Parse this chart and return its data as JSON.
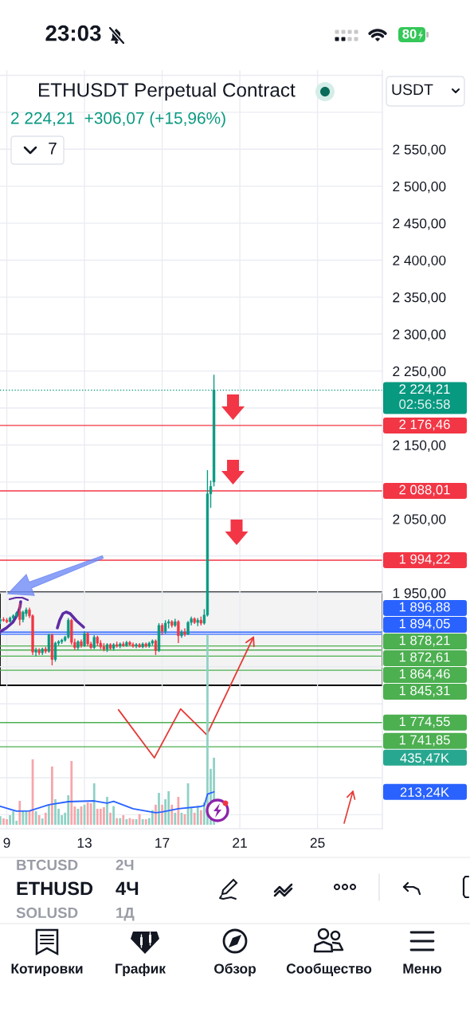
{
  "chart_data": {
    "type": "candlestick",
    "title": "ETHUSDT Perpetual Contract",
    "subtitle": "2 224,21  +306,07 (+15,96%)",
    "x": [
      8.667,
      8.833,
      9,
      9.167,
      9.333,
      9.5,
      9.667,
      9.833,
      10,
      10.167,
      10.333,
      10.5,
      10.667,
      10.833,
      11,
      11.167,
      11.333,
      11.5,
      11.667,
      11.833,
      12,
      12.167,
      12.333,
      12.5,
      12.667,
      12.833,
      13,
      13.167,
      13.333,
      13.5,
      13.667,
      13.833,
      14,
      14.167,
      14.333,
      14.5,
      14.667,
      14.833,
      15,
      15.167,
      15.333,
      15.5,
      15.667,
      15.833,
      16,
      16.167,
      16.333,
      16.5,
      16.667,
      16.833,
      17,
      17.167,
      17.333,
      17.5,
      17.667,
      17.833,
      18,
      18.167,
      18.333,
      18.5,
      18.667,
      18.833,
      19,
      19.167,
      19.333,
      19.5,
      19.667
    ],
    "ohlc": [
      [
        1912,
        1916,
        1908,
        1914
      ],
      [
        1914,
        1917,
        1911,
        1913
      ],
      [
        1913,
        1916,
        1909,
        1911
      ],
      [
        1911,
        1918,
        1910,
        1916
      ],
      [
        1916,
        1921,
        1914,
        1919
      ],
      [
        1919,
        1925,
        1917,
        1923
      ],
      [
        1925,
        1936,
        1906,
        1914
      ],
      [
        1914,
        1926,
        1910,
        1924
      ],
      [
        1922,
        1930,
        1918,
        1927
      ],
      [
        1927,
        1930,
        1916,
        1919
      ],
      [
        1919,
        1921,
        1866,
        1870
      ],
      [
        1870,
        1876,
        1864,
        1872
      ],
      [
        1872,
        1875,
        1866,
        1869
      ],
      [
        1869,
        1876,
        1866,
        1874
      ],
      [
        1874,
        1877,
        1868,
        1871
      ],
      [
        1871,
        1895,
        1869,
        1893
      ],
      [
        1893,
        1895,
        1852,
        1860
      ],
      [
        1860,
        1884,
        1857,
        1882
      ],
      [
        1882,
        1886,
        1879,
        1884
      ],
      [
        1884,
        1888,
        1881,
        1886
      ],
      [
        1886,
        1892,
        1884,
        1890
      ],
      [
        1890,
        1916,
        1888,
        1913
      ],
      [
        1913,
        1915,
        1880,
        1883
      ],
      [
        1883,
        1888,
        1873,
        1876
      ],
      [
        1876,
        1886,
        1873,
        1884
      ],
      [
        1884,
        1887,
        1876,
        1879
      ],
      [
        1879,
        1898,
        1877,
        1895
      ],
      [
        1895,
        1897,
        1878,
        1881
      ],
      [
        1881,
        1884,
        1874,
        1876
      ],
      [
        1876,
        1893,
        1874,
        1890
      ],
      [
        1890,
        1892,
        1878,
        1882
      ],
      [
        1882,
        1886,
        1874,
        1877
      ],
      [
        1877,
        1882,
        1871,
        1874
      ],
      [
        1874,
        1882,
        1870,
        1880
      ],
      [
        1880,
        1882,
        1873,
        1875
      ],
      [
        1875,
        1882,
        1872,
        1880
      ],
      [
        1880,
        1884,
        1876,
        1878
      ],
      [
        1878,
        1883,
        1875,
        1881
      ],
      [
        1881,
        1884,
        1877,
        1879
      ],
      [
        1879,
        1885,
        1877,
        1883
      ],
      [
        1883,
        1885,
        1878,
        1880
      ],
      [
        1880,
        1883,
        1876,
        1878
      ],
      [
        1878,
        1882,
        1875,
        1880
      ],
      [
        1880,
        1882,
        1876,
        1877
      ],
      [
        1877,
        1883,
        1875,
        1881
      ],
      [
        1881,
        1883,
        1876,
        1878
      ],
      [
        1878,
        1884,
        1876,
        1882
      ],
      [
        1882,
        1887,
        1879,
        1885
      ],
      [
        1885,
        1887,
        1866,
        1872
      ],
      [
        1872,
        1909,
        1870,
        1906
      ],
      [
        1906,
        1909,
        1893,
        1898
      ],
      [
        1898,
        1913,
        1895,
        1909
      ],
      [
        1909,
        1914,
        1902,
        1911
      ],
      [
        1911,
        1913,
        1903,
        1906
      ],
      [
        1906,
        1915,
        1904,
        1911
      ],
      [
        1911,
        1913,
        1882,
        1892
      ],
      [
        1892,
        1900,
        1889,
        1897
      ],
      [
        1897,
        1902,
        1891,
        1894
      ],
      [
        1894,
        1912,
        1893,
        1910
      ],
      [
        1910,
        1918,
        1906,
        1915
      ],
      [
        1915,
        1917,
        1908,
        1910
      ],
      [
        1910,
        1916,
        1905,
        1913
      ],
      [
        1913,
        1918,
        1906,
        1909
      ],
      [
        1909,
        1928,
        1907,
        1920
      ],
      [
        1920,
        2116,
        1918,
        2084
      ],
      [
        2084,
        2102,
        2065,
        2094
      ],
      [
        2100,
        2245,
        2094,
        2224.21
      ]
    ],
    "colors": [
      "#089981",
      "#f23645",
      "#f23645",
      "#089981",
      "#089981",
      "#089981",
      "#f23645",
      "#089981",
      "#089981",
      "#f23645",
      "#f23645",
      "#089981",
      "#f23645",
      "#089981",
      "#f23645",
      "#089981",
      "#f23645",
      "#089981",
      "#089981",
      "#089981",
      "#089981",
      "#089981",
      "#f23645",
      "#f23645",
      "#089981",
      "#f23645",
      "#089981",
      "#f23645",
      "#f23645",
      "#089981",
      "#f23645",
      "#f23645",
      "#f23645",
      "#089981",
      "#f23645",
      "#089981",
      "#f23645",
      "#089981",
      "#f23645",
      "#089981",
      "#f23645",
      "#f23645",
      "#089981",
      "#f23645",
      "#089981",
      "#f23645",
      "#089981",
      "#089981",
      "#f23645",
      "#089981",
      "#f23645",
      "#089981",
      "#089981",
      "#f23645",
      "#089981",
      "#f23645",
      "#089981",
      "#f23645",
      "#089981",
      "#089981",
      "#f23645",
      "#089981",
      "#f23645",
      "#089981",
      "#089981",
      "#089981",
      "#089981"
    ],
    "series": [
      {
        "type": "bar",
        "axis": "y2",
        "values": [
          55,
          41,
          36,
          62,
          88,
          26,
          155,
          88,
          88,
          93,
          425,
          88,
          62,
          41,
          78,
          130,
          378,
          166,
          104,
          62,
          78,
          192,
          414,
          119,
          104,
          119,
          130,
          145,
          140,
          269,
          104,
          104,
          114,
          181,
          78,
          121,
          43,
          43,
          62,
          36,
          43,
          36,
          36,
          69,
          36,
          36,
          43,
          95,
          130,
          207,
          130,
          166,
          218,
          130,
          78,
          181,
          78,
          69,
          269,
          114,
          78,
          121,
          95,
          145,
          1233,
          363,
          435.47
        ],
        "colors": [
          "#8fd1c5",
          "#f6a6ab",
          "#f6a6ab",
          "#8fd1c5",
          "#8fd1c5",
          "#8fd1c5",
          "#f6a6ab",
          "#8fd1c5",
          "#8fd1c5",
          "#f6a6ab",
          "#f6a6ab",
          "#8fd1c5",
          "#f6a6ab",
          "#8fd1c5",
          "#f6a6ab",
          "#8fd1c5",
          "#f6a6ab",
          "#8fd1c5",
          "#8fd1c5",
          "#8fd1c5",
          "#8fd1c5",
          "#8fd1c5",
          "#f6a6ab",
          "#f6a6ab",
          "#8fd1c5",
          "#f6a6ab",
          "#8fd1c5",
          "#f6a6ab",
          "#f6a6ab",
          "#8fd1c5",
          "#f6a6ab",
          "#f6a6ab",
          "#f6a6ab",
          "#8fd1c5",
          "#f6a6ab",
          "#8fd1c5",
          "#f6a6ab",
          "#8fd1c5",
          "#f6a6ab",
          "#8fd1c5",
          "#f6a6ab",
          "#f6a6ab",
          "#8fd1c5",
          "#f6a6ab",
          "#8fd1c5",
          "#f6a6ab",
          "#8fd1c5",
          "#8fd1c5",
          "#f6a6ab",
          "#8fd1c5",
          "#f6a6ab",
          "#8fd1c5",
          "#8fd1c5",
          "#f6a6ab",
          "#8fd1c5",
          "#f6a6ab",
          "#8fd1c5",
          "#f6a6ab",
          "#8fd1c5",
          "#8fd1c5",
          "#f6a6ab",
          "#8fd1c5",
          "#f6a6ab",
          "#8fd1c5",
          "#8fd1c5",
          "#8fd1c5",
          "#8fd1c5"
        ]
      },
      {
        "type": "line",
        "axis": "y2",
        "color": "#2962ff",
        "x": [
          8.667,
          9.5,
          10.167,
          11.167,
          12.167,
          13.5,
          14.167,
          14.5,
          15.5,
          16.667,
          17,
          17.833,
          19,
          19.167,
          19.333,
          19.5,
          19.667
        ],
        "values": [
          119,
          88,
          90,
          130,
          150,
          155,
          140,
          152,
          104,
          78,
          83,
          104,
          119,
          125,
          198,
          206,
          213.24
        ]
      },
      {
        "type": "line",
        "color": "#e53935",
        "x": [
          14.75,
          16.6,
          17.95,
          19.3,
          21.7
        ],
        "values": [
          1792,
          1727,
          1793,
          1758,
          1890
        ]
      }
    ],
    "xlim": [
      8.65,
      28.34
    ],
    "xticks": [
      9,
      13,
      17,
      21,
      25
    ],
    "ylim": [
      1631,
      2657
    ],
    "yticks": [
      {
        "value": 1650,
        "label": null
      },
      {
        "value": 1700,
        "label": null
      },
      {
        "value": 1750,
        "label": null
      },
      {
        "value": 1800,
        "label": null
      },
      {
        "value": 1850,
        "label": null
      },
      {
        "value": 1900,
        "label": null
      },
      {
        "value": 1950,
        "label": "1 950,00"
      },
      {
        "value": 2000,
        "label": null
      },
      {
        "value": 2050,
        "label": "2 050,00"
      },
      {
        "value": 2100,
        "label": null
      },
      {
        "value": 2150,
        "label": "2 150,00"
      },
      {
        "value": 2200,
        "label": null
      },
      {
        "value": 2250,
        "label": "2 250,00"
      },
      {
        "value": 2300,
        "label": "2 300,00"
      },
      {
        "value": 2350,
        "label": "2 350,00"
      },
      {
        "value": 2400,
        "label": "2 400,00"
      },
      {
        "value": 2450,
        "label": "2 450,00"
      },
      {
        "value": 2500,
        "label": "2 500,00"
      },
      {
        "value": 2550,
        "label": "2 550,00"
      },
      {
        "value": 2600,
        "label": null
      },
      {
        "value": 2650,
        "label": null
      }
    ],
    "y2lim": [
      -26,
      4900
    ],
    "y2ticks": [
      {
        "value": 213.24,
        "label": "213,24K"
      },
      {
        "value": 435.47,
        "label": "435,47K"
      }
    ],
    "ref_lines": [
      {
        "axis": "y",
        "value": 2224.21,
        "label": "2 224,21\n02:56:58",
        "color": "#089981",
        "line_style": "dotted"
      },
      {
        "axis": "y",
        "value": 2176.46,
        "label": "2 176,46",
        "color": "#f23645"
      },
      {
        "axis": "y",
        "value": 2088.01,
        "label": "2 088,01",
        "color": "#f23645"
      },
      {
        "axis": "y",
        "value": 1994.22,
        "label": "1 994,22",
        "color": "#f23645"
      },
      {
        "axis": "y",
        "value": 1896.88,
        "label": "1 896,88",
        "color": "#2962ff"
      },
      {
        "axis": "y",
        "value": 1894.05,
        "label": "1 894,05",
        "color": "#2962ff"
      },
      {
        "axis": "y",
        "value": 1878.21,
        "label": "1 878,21",
        "color": "#4caf50"
      },
      {
        "axis": "y",
        "value": 1872.61,
        "label": "1 872,61",
        "color": "#4caf50"
      },
      {
        "axis": "y",
        "value": 1864.46,
        "label": "1 864,46",
        "color": "#4caf50"
      },
      {
        "axis": "y",
        "value": 1845.31,
        "label": "1 845,31",
        "color": "#4caf50"
      },
      {
        "axis": "y",
        "value": 1774.55,
        "label": "1 774,55",
        "color": "#4caf50"
      },
      {
        "axis": "y",
        "value": 1741.85,
        "label": "1 741,85",
        "color": "#4caf50"
      }
    ],
    "bands": [
      {
        "axis": "y",
        "from": 1825,
        "to": 1951,
        "color": "#f3f3f3"
      }
    ],
    "grid": true,
    "annotations": [
      "23:03",
      "80",
      "USDT",
      "7",
      "BTCUSD",
      "2Ч",
      "ETHUSD",
      "4Ч",
      "SOLUSD",
      "1Д",
      "Котировки",
      "График",
      "Обзор",
      "Сообщество",
      "Меню"
    ]
  }
}
